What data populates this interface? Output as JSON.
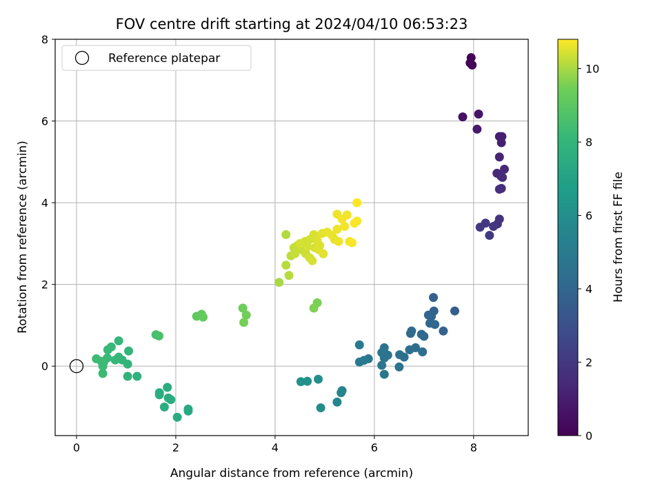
{
  "chart_data": {
    "type": "scatter",
    "title": "FOV centre drift starting at 2024/04/10 06:53:23",
    "xlabel": "Angular distance from reference (arcmin)",
    "ylabel": "Rotation from reference (arcmin)",
    "xlim": [
      -0.43,
      9.1
    ],
    "ylim": [
      -1.7,
      8.0
    ],
    "x_ticks": [
      0,
      2,
      4,
      6,
      8
    ],
    "y_ticks": [
      0,
      2,
      4,
      6,
      8
    ],
    "x_tick_labels": [
      "0",
      "2",
      "4",
      "6",
      "8"
    ],
    "y_tick_labels": [
      "0",
      "2",
      "4",
      "6",
      "8"
    ],
    "grid": true,
    "legend": {
      "placement": "top-left",
      "entries": [
        {
          "label": "Reference platepar",
          "marker": "open-circle",
          "x": 0,
          "y": 0
        }
      ]
    },
    "colorbar": {
      "label": "Hours from first FF file",
      "colormap": "viridis",
      "range": [
        0,
        10.8
      ],
      "ticks": [
        0,
        2,
        4,
        6,
        8,
        10
      ],
      "tick_labels": [
        "0",
        "2",
        "4",
        "6",
        "8",
        "10"
      ]
    },
    "points": [
      [
        7.95,
        7.55,
        0.05
      ],
      [
        7.93,
        7.42,
        0.1
      ],
      [
        7.97,
        7.37,
        0.15
      ],
      [
        7.78,
        6.1,
        0.6
      ],
      [
        8.1,
        6.17,
        0.7
      ],
      [
        8.07,
        5.8,
        0.85
      ],
      [
        8.52,
        5.62,
        1.0
      ],
      [
        8.57,
        5.62,
        1.05
      ],
      [
        8.56,
        5.47,
        1.1
      ],
      [
        8.52,
        5.12,
        1.2
      ],
      [
        8.47,
        4.72,
        1.35
      ],
      [
        8.62,
        4.82,
        1.4
      ],
      [
        8.55,
        4.65,
        1.45
      ],
      [
        8.58,
        4.62,
        1.5
      ],
      [
        8.56,
        4.35,
        1.6
      ],
      [
        8.52,
        4.33,
        1.65
      ],
      [
        8.52,
        3.6,
        1.8
      ],
      [
        8.48,
        3.48,
        1.85
      ],
      [
        8.4,
        3.42,
        1.95
      ],
      [
        8.24,
        3.5,
        2.0
      ],
      [
        8.13,
        3.4,
        2.05
      ],
      [
        8.32,
        3.2,
        2.1
      ],
      [
        7.62,
        1.35,
        3.6
      ],
      [
        7.19,
        1.68,
        3.7
      ],
      [
        7.39,
        0.86,
        3.8
      ],
      [
        7.2,
        1.35,
        3.85
      ],
      [
        7.15,
        1.22,
        3.9
      ],
      [
        7.09,
        1.25,
        3.95
      ],
      [
        7.12,
        1.05,
        4.0
      ],
      [
        7.22,
        1.02,
        4.05
      ],
      [
        7.0,
        0.73,
        4.1
      ],
      [
        6.95,
        0.78,
        4.15
      ],
      [
        6.73,
        0.8,
        4.2
      ],
      [
        6.75,
        0.86,
        4.2
      ],
      [
        6.83,
        0.45,
        4.3
      ],
      [
        6.97,
        0.35,
        4.35
      ],
      [
        6.71,
        0.4,
        4.4
      ],
      [
        6.6,
        0.22,
        4.45
      ],
      [
        6.51,
        0.28,
        4.5
      ],
      [
        6.5,
        -0.02,
        4.55
      ],
      [
        6.27,
        0.27,
        4.6
      ],
      [
        6.2,
        0.45,
        4.65
      ],
      [
        6.15,
        0.33,
        4.7
      ],
      [
        6.2,
        0.2,
        4.75
      ],
      [
        6.15,
        0.02,
        4.8
      ],
      [
        6.2,
        -0.2,
        4.85
      ],
      [
        5.88,
        0.18,
        4.9
      ],
      [
        5.79,
        0.14,
        4.95
      ],
      [
        5.7,
        0.1,
        5.0
      ],
      [
        5.7,
        0.52,
        5.05
      ],
      [
        5.35,
        -0.6,
        5.45
      ],
      [
        5.33,
        -0.65,
        5.55
      ],
      [
        5.25,
        -0.88,
        5.6
      ],
      [
        4.92,
        -1.02,
        5.95
      ],
      [
        4.87,
        -0.32,
        6.0
      ],
      [
        4.65,
        -0.37,
        6.1
      ],
      [
        4.52,
        -0.38,
        6.15
      ],
      [
        2.03,
        -1.25,
        7.4
      ],
      [
        2.25,
        -1.05,
        7.35
      ],
      [
        2.25,
        -1.1,
        7.35
      ],
      [
        1.9,
        -0.82,
        7.45
      ],
      [
        1.85,
        -0.78,
        7.45
      ],
      [
        1.77,
        -1.0,
        7.5
      ],
      [
        1.83,
        -0.52,
        7.5
      ],
      [
        1.67,
        -0.7,
        7.55
      ],
      [
        1.67,
        -0.65,
        7.55
      ],
      [
        1.22,
        -0.25,
        7.8
      ],
      [
        1.03,
        -0.25,
        7.85
      ],
      [
        1.03,
        0.05,
        7.9
      ],
      [
        1.05,
        0.37,
        7.95
      ],
      [
        0.92,
        0.15,
        8.0
      ],
      [
        0.85,
        0.22,
        8.05
      ],
      [
        0.85,
        0.62,
        8.05
      ],
      [
        0.78,
        0.15,
        8.1
      ],
      [
        0.7,
        0.47,
        8.15
      ],
      [
        0.63,
        0.4,
        8.15
      ],
      [
        0.62,
        0.2,
        8.2
      ],
      [
        0.55,
        0.1,
        8.2
      ],
      [
        0.53,
        0.0,
        8.25
      ],
      [
        0.53,
        -0.18,
        8.25
      ],
      [
        0.4,
        0.18,
        8.3
      ],
      [
        0.5,
        0.12,
        8.3
      ],
      [
        1.6,
        0.77,
        8.55
      ],
      [
        1.66,
        0.74,
        8.6
      ],
      [
        2.42,
        1.22,
        9.1
      ],
      [
        2.52,
        1.27,
        9.15
      ],
      [
        2.55,
        1.2,
        9.2
      ],
      [
        3.35,
        1.42,
        9.4
      ],
      [
        3.42,
        1.25,
        9.45
      ],
      [
        3.37,
        1.07,
        9.5
      ],
      [
        4.85,
        1.55,
        9.55
      ],
      [
        4.78,
        1.42,
        9.6
      ],
      [
        4.08,
        2.05,
        10.0
      ],
      [
        4.22,
        3.22,
        10.1
      ],
      [
        4.22,
        2.47,
        10.15
      ],
      [
        4.28,
        2.22,
        10.15
      ],
      [
        4.32,
        2.7,
        10.2
      ],
      [
        4.38,
        2.9,
        10.25
      ],
      [
        4.45,
        2.95,
        10.25
      ],
      [
        4.52,
        2.85,
        10.3
      ],
      [
        4.55,
        3.0,
        10.3
      ],
      [
        4.6,
        3.05,
        10.35
      ],
      [
        4.62,
        2.75,
        10.35
      ],
      [
        4.65,
        2.92,
        10.4
      ],
      [
        4.7,
        2.65,
        10.4
      ],
      [
        4.75,
        2.58,
        10.45
      ],
      [
        4.78,
        3.22,
        10.45
      ],
      [
        4.8,
        2.9,
        10.45
      ],
      [
        4.85,
        3.08,
        10.5
      ],
      [
        4.88,
        2.85,
        10.5
      ],
      [
        4.9,
        2.95,
        10.5
      ],
      [
        4.95,
        3.25,
        10.55
      ],
      [
        4.97,
        2.75,
        10.55
      ],
      [
        5.05,
        3.28,
        10.6
      ],
      [
        5.15,
        3.2,
        10.6
      ],
      [
        5.2,
        3.1,
        10.6
      ],
      [
        5.25,
        3.35,
        10.65
      ],
      [
        5.28,
        3.05,
        10.65
      ],
      [
        5.25,
        3.72,
        10.65
      ],
      [
        5.35,
        3.6,
        10.7
      ],
      [
        5.4,
        3.42,
        10.7
      ],
      [
        5.45,
        3.7,
        10.7
      ],
      [
        5.5,
        3.05,
        10.7
      ],
      [
        5.55,
        3.02,
        10.75
      ],
      [
        5.6,
        3.5,
        10.75
      ],
      [
        5.65,
        3.55,
        10.75
      ],
      [
        5.65,
        4.0,
        10.8
      ],
      [
        4.5,
        3.0,
        10.4
      ],
      [
        4.4,
        2.75,
        10.3
      ],
      [
        4.7,
        3.1,
        10.4
      ]
    ]
  }
}
